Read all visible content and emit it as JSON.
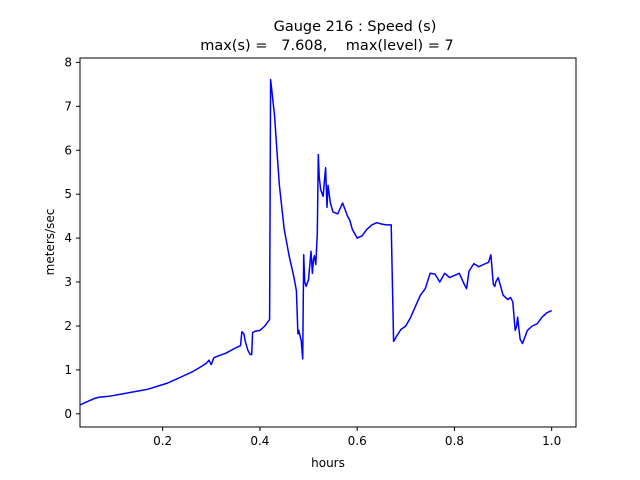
{
  "chart_data": {
    "type": "line",
    "title_line1": "Gauge 216 : Speed (s)",
    "title_line2": "max(s) =   7.608,    max(level) = 7",
    "xlabel": "hours",
    "ylabel": "meters/sec",
    "xlim": [
      0.03,
      1.05
    ],
    "ylim": [
      -0.3,
      8.1
    ],
    "xticks": [
      0.2,
      0.4,
      0.6,
      0.8,
      1.0
    ],
    "xtick_labels": [
      "0.2",
      "0.4",
      "0.6",
      "0.8",
      "1.0"
    ],
    "yticks": [
      0,
      1,
      2,
      3,
      4,
      5,
      6,
      7,
      8
    ],
    "ytick_labels": [
      "0",
      "1",
      "2",
      "3",
      "4",
      "5",
      "6",
      "7",
      "8"
    ],
    "grid": false,
    "line_color": "#0000ff",
    "series": [
      {
        "x": [
          0.03,
          0.05,
          0.06,
          0.07,
          0.09,
          0.12,
          0.15,
          0.17,
          0.19,
          0.21,
          0.24,
          0.26,
          0.28,
          0.29,
          0.295,
          0.3,
          0.305,
          0.31,
          0.33,
          0.35,
          0.36,
          0.363,
          0.367,
          0.37,
          0.375,
          0.38,
          0.383,
          0.385,
          0.39,
          0.4,
          0.41,
          0.42,
          0.422,
          0.425,
          0.43,
          0.435,
          0.44,
          0.45,
          0.46,
          0.47,
          0.475,
          0.478,
          0.48,
          0.485,
          0.488,
          0.49,
          0.492,
          0.495,
          0.5,
          0.505,
          0.508,
          0.51,
          0.512,
          0.515,
          0.518,
          0.52,
          0.522,
          0.525,
          0.53,
          0.535,
          0.538,
          0.54,
          0.545,
          0.55,
          0.56,
          0.57,
          0.58,
          0.585,
          0.59,
          0.6,
          0.61,
          0.62,
          0.63,
          0.64,
          0.65,
          0.66,
          0.67,
          0.675,
          0.678,
          0.68,
          0.69,
          0.7,
          0.71,
          0.72,
          0.73,
          0.74,
          0.75,
          0.76,
          0.77,
          0.78,
          0.79,
          0.8,
          0.81,
          0.82,
          0.825,
          0.83,
          0.84,
          0.85,
          0.86,
          0.87,
          0.875,
          0.88,
          0.883,
          0.885,
          0.89,
          0.9,
          0.91,
          0.915,
          0.92,
          0.925,
          0.928,
          0.93,
          0.935,
          0.94,
          0.95,
          0.96,
          0.97,
          0.98,
          0.99,
          1.0
        ],
        "y": [
          0.2,
          0.3,
          0.35,
          0.38,
          0.4,
          0.46,
          0.52,
          0.56,
          0.63,
          0.7,
          0.85,
          0.95,
          1.08,
          1.15,
          1.22,
          1.12,
          1.27,
          1.3,
          1.38,
          1.5,
          1.55,
          1.87,
          1.82,
          1.65,
          1.45,
          1.35,
          1.35,
          1.85,
          1.88,
          1.9,
          2.0,
          2.15,
          7.608,
          7.3,
          6.8,
          6.0,
          5.2,
          4.2,
          3.6,
          3.1,
          2.8,
          1.82,
          1.9,
          1.65,
          1.25,
          3.62,
          3.0,
          2.9,
          3.05,
          3.7,
          3.2,
          3.5,
          3.6,
          3.4,
          4.1,
          5.9,
          5.4,
          5.1,
          4.95,
          5.6,
          4.7,
          5.2,
          4.8,
          4.6,
          4.55,
          4.8,
          4.5,
          4.4,
          4.2,
          4.0,
          4.05,
          4.2,
          4.3,
          4.35,
          4.32,
          4.3,
          4.3,
          1.65,
          1.7,
          1.75,
          1.92,
          2.0,
          2.2,
          2.45,
          2.7,
          2.85,
          3.2,
          3.18,
          3.0,
          3.2,
          3.1,
          3.15,
          3.2,
          2.95,
          2.85,
          3.25,
          3.42,
          3.35,
          3.4,
          3.45,
          3.62,
          2.95,
          2.9,
          3.0,
          3.1,
          2.7,
          2.6,
          2.65,
          2.55,
          1.9,
          2.0,
          2.2,
          1.7,
          1.6,
          1.9,
          2.0,
          2.05,
          2.2,
          2.3,
          2.35
        ]
      }
    ]
  }
}
